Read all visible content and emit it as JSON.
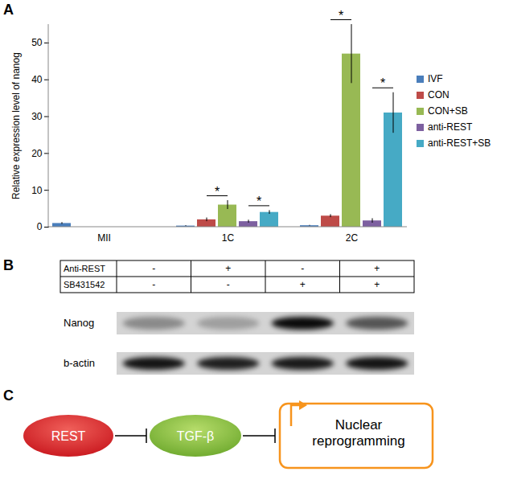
{
  "chart_data": {
    "type": "bar",
    "title": "A",
    "y_label": "Relative expression level of nanog",
    "categories": [
      "MII",
      "1C",
      "2C"
    ],
    "series": [
      {
        "name": "IVF",
        "color": "#4a7ebb",
        "values": [
          1.0,
          0.3,
          0.4
        ],
        "errors": [
          0.25,
          0.1,
          0.1
        ]
      },
      {
        "name": "CON",
        "color": "#be4b48",
        "values": [
          null,
          2.0,
          3.0
        ],
        "errors": [
          null,
          0.5,
          0.4
        ]
      },
      {
        "name": "CON+SB",
        "color": "#98b954",
        "values": [
          null,
          6.0,
          47
        ],
        "errors": [
          null,
          1.2,
          8
        ]
      },
      {
        "name": "anti-REST",
        "color": "#7d60a0",
        "values": [
          null,
          1.5,
          1.7
        ],
        "errors": [
          null,
          0.4,
          0.6
        ]
      },
      {
        "name": "anti-REST+SB",
        "color": "#46aac5",
        "values": [
          null,
          4.0,
          31
        ],
        "errors": [
          null,
          0.5,
          5.5
        ]
      }
    ],
    "ylim": [
      0,
      55
    ],
    "yticks": [
      0,
      10,
      20,
      30,
      40,
      50
    ],
    "legend": "right",
    "annotations": [
      {
        "text": "*",
        "category": "1C",
        "from": "CON",
        "to": "CON+SB"
      },
      {
        "text": "*",
        "category": "1C",
        "from": "anti-REST",
        "to": "anti-REST+SB"
      },
      {
        "text": "*",
        "category": "2C",
        "from": "CON",
        "to": "CON+SB"
      },
      {
        "text": "*",
        "category": "2C",
        "from": "anti-REST",
        "to": "anti-REST+SB"
      }
    ]
  },
  "blot": {
    "label": "B",
    "table": {
      "rows": [
        {
          "label": "Anti-REST",
          "values": [
            "-",
            "+",
            "-",
            "+"
          ]
        },
        {
          "label": "SB431542",
          "values": [
            "-",
            "-",
            "+",
            "+"
          ]
        }
      ]
    },
    "bands": [
      {
        "label": "Nanog",
        "band_intensity": [
          0.35,
          0.25,
          0.95,
          0.6
        ]
      },
      {
        "label": "b-actin",
        "band_intensity": [
          0.9,
          0.85,
          0.88,
          0.9
        ]
      }
    ]
  },
  "diagram": {
    "label": "C",
    "nodes": [
      {
        "label": "REST"
      },
      {
        "label": "TGF-β"
      },
      {
        "label": [
          "Nuclear",
          "reprogramming"
        ]
      }
    ]
  }
}
